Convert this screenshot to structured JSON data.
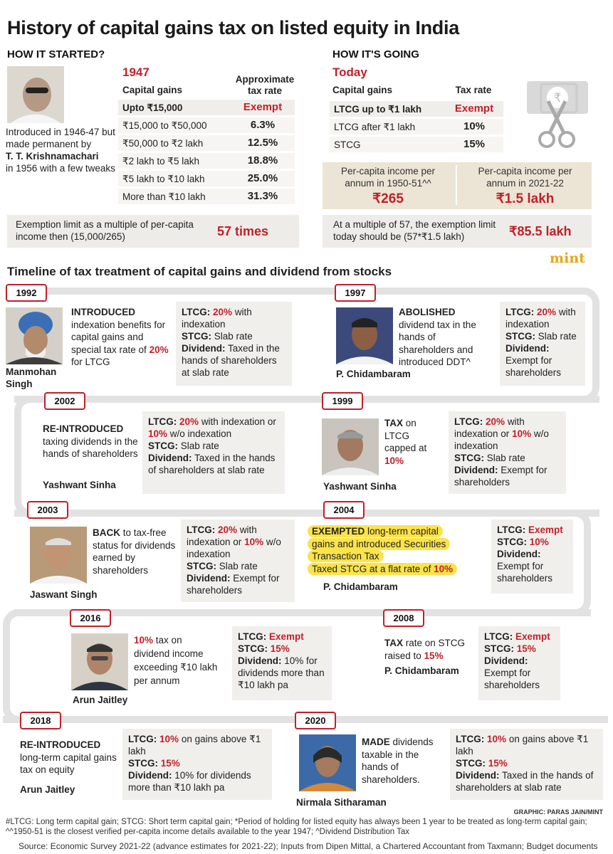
{
  "title": "History of capital gains tax on listed equity in India",
  "left": {
    "heading": "HOW IT STARTED?",
    "year": "1947",
    "col1": "Capital gains",
    "col2": "Approximate tax rate",
    "rows": [
      {
        "slab": "Upto ₹15,000",
        "rate": "Exempt"
      },
      {
        "slab": "₹15,000 to ₹50,000",
        "rate": "6.3%"
      },
      {
        "slab": "₹50,000 to ₹2 lakh",
        "rate": "12.5%"
      },
      {
        "slab": "₹2 lakh to ₹5 lakh",
        "rate": "18.8%"
      },
      {
        "slab": "₹5 lakh to ₹10 lakh",
        "rate": "25.0%"
      },
      {
        "slab": "More than ₹10 lakh",
        "rate": "31.3%"
      }
    ],
    "intro_a": "Introduced in 1946-47 but made permanent by",
    "intro_name": "T. T. Krishnamachari",
    "intro_b": "in 1956 with a few tweaks",
    "exemption_text": "Exemption limit as a multiple of per-capita income then (15,000/265)",
    "exemption_value": "57 times"
  },
  "right": {
    "heading": "HOW IT'S GOING",
    "year": "Today",
    "col1": "Capital gains",
    "col2": "Tax rate",
    "rows": [
      {
        "slab": "LTCG up to ₹1 lakh",
        "rate": "Exempt"
      },
      {
        "slab": "LTCG after ₹1 lakh",
        "rate": "10%"
      },
      {
        "slab": "STCG",
        "rate": "15%"
      }
    ],
    "pci_then_label": "Per-capita income per annum in 1950-51^^",
    "pci_then_value": "₹265",
    "pci_now_label": "Per-capita income per annum in 2021-22",
    "pci_now_value": "₹1.5 lakh",
    "multiple_text": "At a multiple of 57, the exemption limit today should be (57*₹1.5 lakh)",
    "multiple_value": "₹85.5 lakh",
    "brand": "mint"
  },
  "timeline_title": "Timeline of tax treatment of capital gains and dividend from stocks",
  "events": {
    "e1992": {
      "year": "1992",
      "kw": "INTRODUCED",
      "desc": "indexation benefits for capital gains and special tax rate of",
      "rate": "20%",
      "tail": "for LTCG",
      "person1": "Manmohan",
      "person2": "Singh",
      "l1": "LTCG:",
      "l1v": "20%",
      "l1t": "with indexation",
      "l2": "STCG:",
      "l2t": "Slab rate",
      "l3": "Dividend:",
      "l3t": "Taxed in the hands of shareholders at slab rate"
    },
    "e1997": {
      "year": "1997",
      "kw": "ABOLISHED",
      "desc": "dividend tax in the hands of shareholders and introduced DDT^",
      "person": "P. Chidambaram",
      "l1": "LTCG:",
      "l1v": "20%",
      "l1t": "with indexation",
      "l2": "STCG:",
      "l2t": "Slab rate",
      "l3": "Dividend:",
      "l3t": "Exempt for shareholders"
    },
    "e2002": {
      "year": "2002",
      "kw": "RE-INTRODUCED",
      "desc": "taxing dividends in the hands of shareholders",
      "person": "Yashwant Sinha",
      "l1": "LTCG:",
      "l1v": "20%",
      "l1t": "with indexation or",
      "l1v2": "10%",
      "l1t2": "w/o indexation",
      "l2": "STCG:",
      "l2t": "Slab rate",
      "l3": "Dividend:",
      "l3t": "Taxed in the hands of shareholders at slab rate"
    },
    "e1999": {
      "year": "1999",
      "kw": "TAX",
      "desc": "on LTCG capped at",
      "rate": "10%",
      "person": "Yashwant Sinha",
      "l1": "LTCG:",
      "l1v": "20%",
      "l1t": "with indexation or",
      "l1v2": "10%",
      "l1t2": "w/o indexation",
      "l2": "STCG:",
      "l2t": "Slab rate",
      "l3": "Dividend:",
      "l3t": "Exempt for shareholders"
    },
    "e2003": {
      "year": "2003",
      "kw": "BACK",
      "desc": "to tax-free status for dividends earned by shareholders",
      "person": "Jaswant Singh",
      "l1": "LTCG:",
      "l1v": "20%",
      "l1t": "with indexation or",
      "l1v2": "10%",
      "l1t2": "w/o indexation",
      "l2": "STCG:",
      "l2t": "Slab rate",
      "l3": "Dividend:",
      "l3t": "Exempt for shareholders"
    },
    "e2004": {
      "year": "2004",
      "kw": "EXEMPTED",
      "desc1": "long-term capital",
      "desc2": "gains and introduced Securities",
      "desc3": "Transaction Tax",
      "desc4": "Taxed STCG at a flat rate of",
      "rate": "10%",
      "person": "P. Chidambaram",
      "l1": "LTCG:",
      "l1v": "Exempt",
      "l2": "STCG:",
      "l2v": "10%",
      "l3": "Dividend:",
      "l3t": "Exempt for shareholders"
    },
    "e2016": {
      "year": "2016",
      "rate": "10%",
      "desc": "tax on dividend income exceeding ₹10 lakh per annum",
      "person": "Arun Jaitley",
      "l1": "LTCG:",
      "l1v": "Exempt",
      "l2": "STCG:",
      "l2v": "15%",
      "l3": "Dividend:",
      "l3t": "10% for dividends more than ₹10 lakh pa"
    },
    "e2008": {
      "year": "2008",
      "kw": "TAX",
      "desc": "rate on STCG raised to",
      "rate": "15%",
      "person": "P. Chidambaram",
      "l1": "LTCG:",
      "l1v": "Exempt",
      "l2": "STCG:",
      "l2v": "15%",
      "l3": "Dividend:",
      "l3t": "Exempt for shareholders"
    },
    "e2018": {
      "year": "2018",
      "kw": "RE-INTRODUCED",
      "desc": "long-term capital gains tax on equity",
      "person": "Arun Jaitley",
      "l1": "LTCG:",
      "l1v": "10%",
      "l1t": "on gains above ₹1 lakh",
      "l2": "STCG:",
      "l2v": "15%",
      "l3": "Dividend:",
      "l3t": "10% for dividends more than ₹10 lakh pa"
    },
    "e2020": {
      "year": "2020",
      "kw": "MADE",
      "desc": "dividends taxable in the hands of shareholders.",
      "person": "Nirmala Sitharaman",
      "l1": "LTCG:",
      "l1v": "10%",
      "l1t": "on gains above ₹1 lakh",
      "l2": "STCG:",
      "l2v": "15%",
      "l3": "Dividend:",
      "l3t": "Taxed in the hands of shareholders at slab rate"
    }
  },
  "graphic_credit": "GRAPHIC: PARAS JAIN/MINT",
  "footnote": "#LTCG: Long term capital gain; STCG: Short term capital gain; *Period of holding for listed equity has always been 1 year to be treated as long-term capital gain; ^^1950-51 is the closest verified per-capita income details available to the year 1947; ^Dividend Distribution Tax",
  "source": "Source: Economic Survey 2021-22 (advance estimates for 2021-22); Inputs from Dipen Mittal, a Chartered Accountant from Taxmann; Budget documents",
  "colors": {
    "accent": "#c0202a",
    "highlight": "#fbe34a",
    "track": "#e2e2e2",
    "box": "#f1efec"
  }
}
